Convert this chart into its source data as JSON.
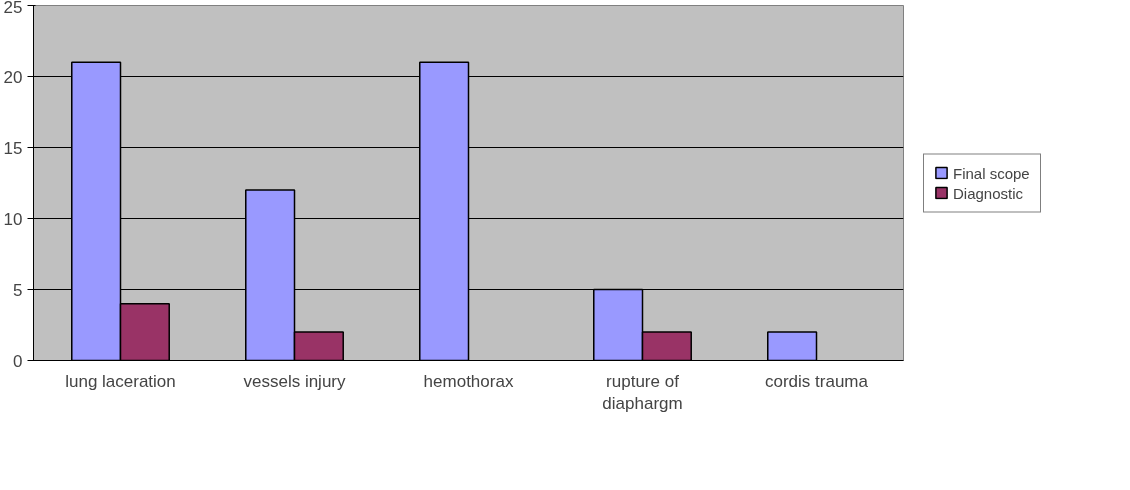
{
  "chart_data": {
    "type": "bar",
    "categories": [
      "lung laceration",
      "vessels injury",
      "hemothorax",
      "rupture of diaphargm",
      "cordis trauma"
    ],
    "series": [
      {
        "name": "Final scope",
        "color": "#9999ff",
        "values": [
          21,
          12,
          21,
          5,
          2
        ]
      },
      {
        "name": "Diagnostic",
        "color": "#993366",
        "values": [
          4,
          2,
          null,
          2,
          null
        ]
      }
    ],
    "ylim": [
      0,
      25
    ],
    "yticks": [
      0,
      5,
      10,
      15,
      20,
      25
    ],
    "grid": "y",
    "legend": "right"
  }
}
